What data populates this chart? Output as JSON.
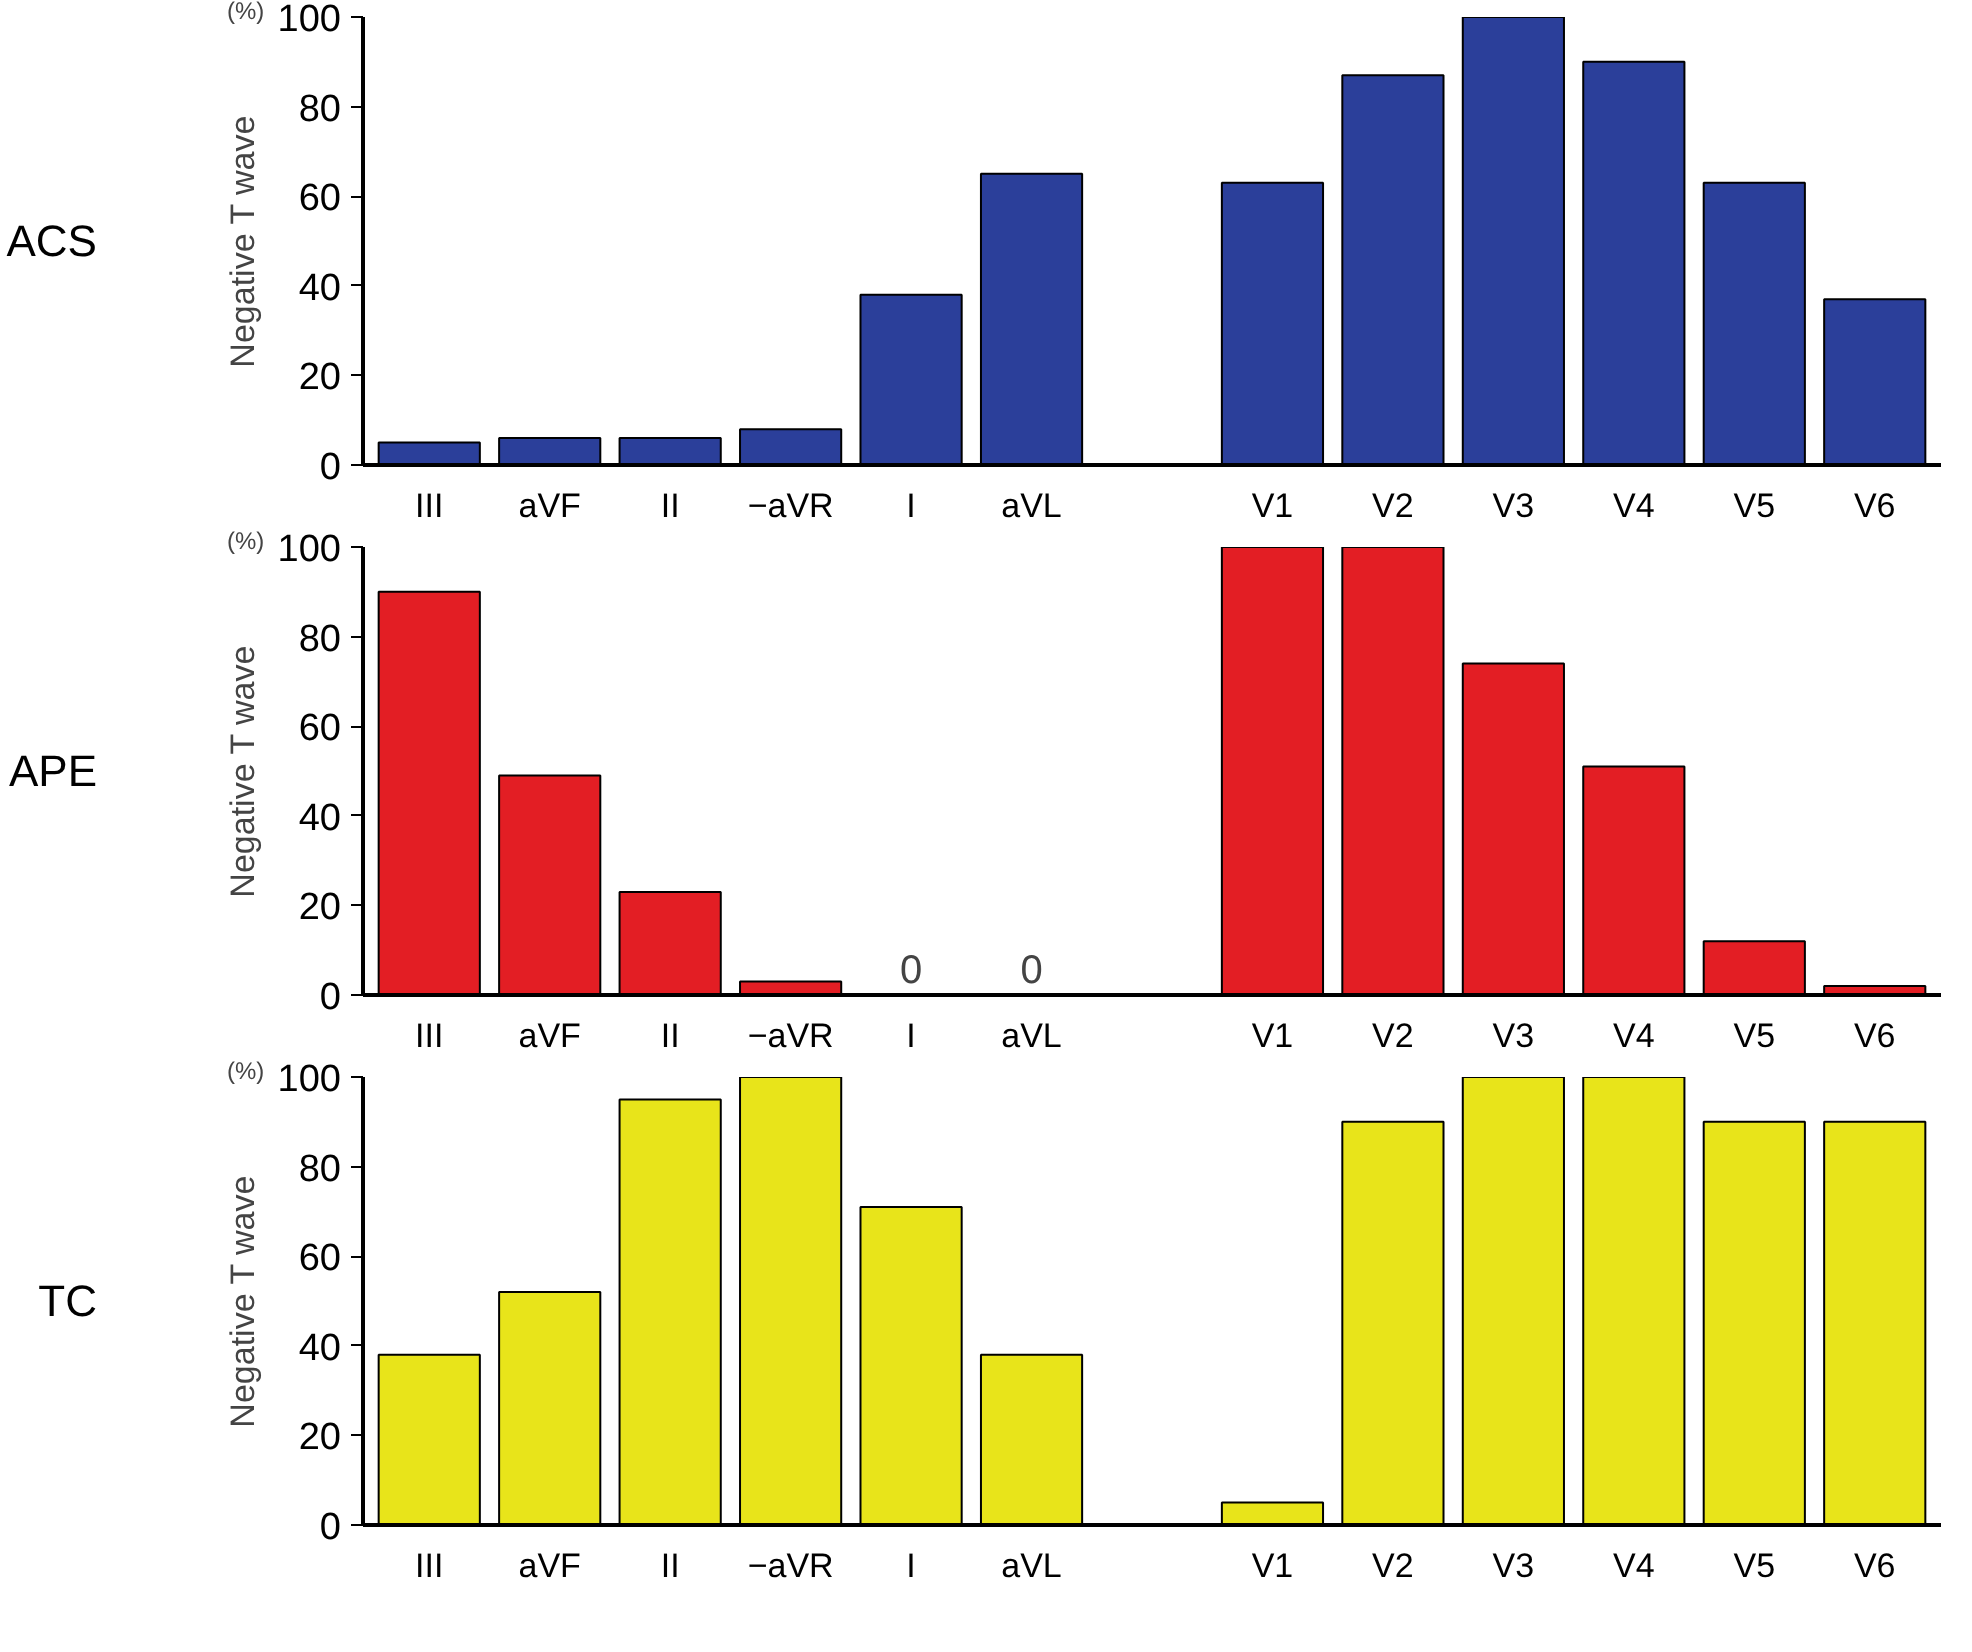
{
  "chart_data": [
    {
      "type": "bar",
      "title": "ACS",
      "ylabel": "Negative T wave",
      "annotations": [
        "(%)"
      ],
      "categories": [
        "III",
        "aVF",
        "II",
        "−aVR",
        "I",
        "aVL",
        null,
        "V1",
        "V2",
        "V3",
        "V4",
        "V5",
        "V6"
      ],
      "values": [
        5,
        6,
        6,
        8,
        38,
        65,
        null,
        63,
        87,
        100,
        90,
        63,
        37
      ],
      "color": "#2b3f9a",
      "ylim": [
        0,
        100
      ],
      "yticks": [
        0,
        20,
        40,
        60,
        80,
        100
      ],
      "grid": false
    },
    {
      "type": "bar",
      "title": "APE",
      "ylabel": "Negative T wave",
      "annotations": [
        "(%)"
      ],
      "categories": [
        "III",
        "aVF",
        "II",
        "−aVR",
        "I",
        "aVL",
        null,
        "V1",
        "V2",
        "V3",
        "V4",
        "V5",
        "V6"
      ],
      "values": [
        90,
        49,
        23,
        3,
        0,
        0,
        null,
        100,
        100,
        74,
        51,
        12,
        2
      ],
      "value_labels": [
        null,
        null,
        null,
        null,
        "0",
        "0",
        null,
        null,
        null,
        null,
        null,
        null,
        null
      ],
      "color": "#e31e24",
      "ylim": [
        0,
        100
      ],
      "yticks": [
        0,
        20,
        40,
        60,
        80,
        100
      ],
      "grid": false
    },
    {
      "type": "bar",
      "title": "TC",
      "ylabel": "Negative T wave",
      "annotations": [
        "(%)"
      ],
      "categories": [
        "III",
        "aVF",
        "II",
        "−aVR",
        "I",
        "aVL",
        null,
        "V1",
        "V2",
        "V3",
        "V4",
        "V5",
        "V6"
      ],
      "values": [
        38,
        52,
        95,
        100,
        71,
        38,
        null,
        5,
        90,
        100,
        100,
        90,
        90
      ],
      "color": "#e8e41a",
      "ylim": [
        0,
        100
      ],
      "yticks": [
        0,
        20,
        40,
        60,
        80,
        100
      ],
      "grid": false
    }
  ]
}
